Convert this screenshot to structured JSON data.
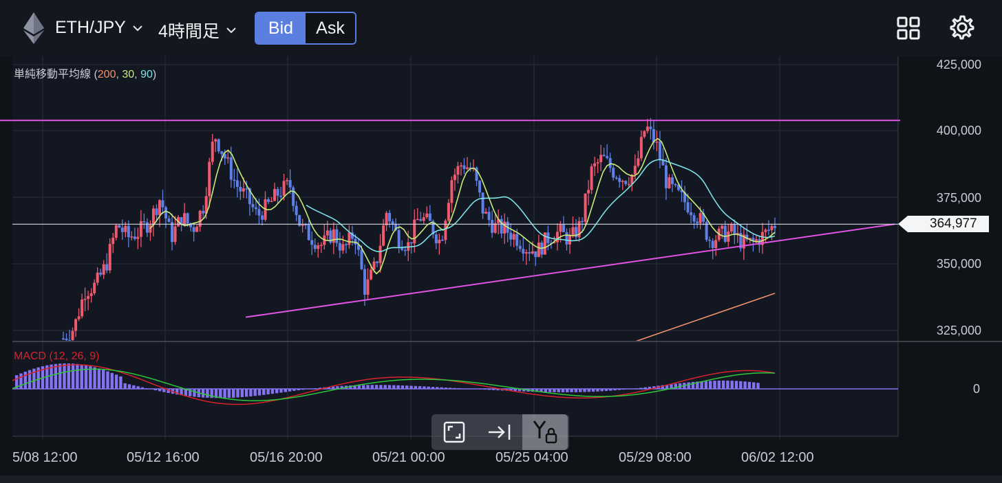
{
  "header": {
    "pair": "ETH/JPY",
    "timeframe": "4時間足",
    "bid_label": "Bid",
    "ask_label": "Ask",
    "active_side": "Bid"
  },
  "indicators": {
    "ma_prefix": "単純移動平均線 (",
    "ma_200": "200",
    "ma_30": "30",
    "ma_90": "90",
    "ma_suffix": ")",
    "macd_label": "MACD (12, 26, 9)"
  },
  "colors": {
    "up": "#ef5a6f",
    "down": "#5f80e6",
    "ma200": "#f0926a",
    "ma30": "#c6ee78",
    "ma90": "#7ce3e6",
    "trendline": "#e353e6",
    "macd_line": "#d8222a",
    "signal_line": "#2ec93a",
    "histogram": "#8473f0",
    "accent": "#5b7fe0"
  },
  "price_axis": [
    "425,000",
    "400,000",
    "375,000",
    "350,000",
    "325,000"
  ],
  "current_price": "364,977",
  "macd_axis": "0",
  "time_axis": [
    "5/08 12:00",
    "05/12 16:00",
    "05/16 20:00",
    "05/21 00:00",
    "05/25 04:00",
    "05/29 08:00",
    "06/02 12:00"
  ],
  "toolbar": {
    "fullscreen_icon": "expand-icon",
    "scroll_latest_icon": "arrow-to-end-icon",
    "y_lock_icon": "y-axis-lock-icon"
  },
  "chart_data": {
    "type": "candlestick",
    "ylim": [
      319000,
      426000
    ],
    "current_price": 364977,
    "close_path": [
      322000,
      326000,
      340000,
      342000,
      350000,
      365000,
      360000,
      362000,
      366000,
      375000,
      360000,
      368000,
      363000,
      372000,
      399000,
      390000,
      380000,
      375000,
      368000,
      372000,
      377000,
      380000,
      364000,
      360000,
      357000,
      362000,
      355000,
      362000,
      340000,
      350000,
      370000,
      360000,
      357000,
      368000,
      365000,
      358000,
      382000,
      388000,
      385000,
      369000,
      364000,
      363000,
      360000,
      356000,
      355000,
      360000,
      362000,
      359000,
      365000,
      385000,
      390000,
      385000,
      382000,
      384000,
      402000,
      395000,
      380000,
      376000,
      372000,
      367000,
      359000,
      361000,
      362000,
      358000,
      358000,
      361000,
      364977
    ],
    "trendline_top": {
      "y": 404000
    },
    "trendline_bottom": {
      "y_start": 330000,
      "y_end": 365000
    },
    "ma200_path": [
      319500,
      339000
    ],
    "macd_axis_value": 0
  }
}
